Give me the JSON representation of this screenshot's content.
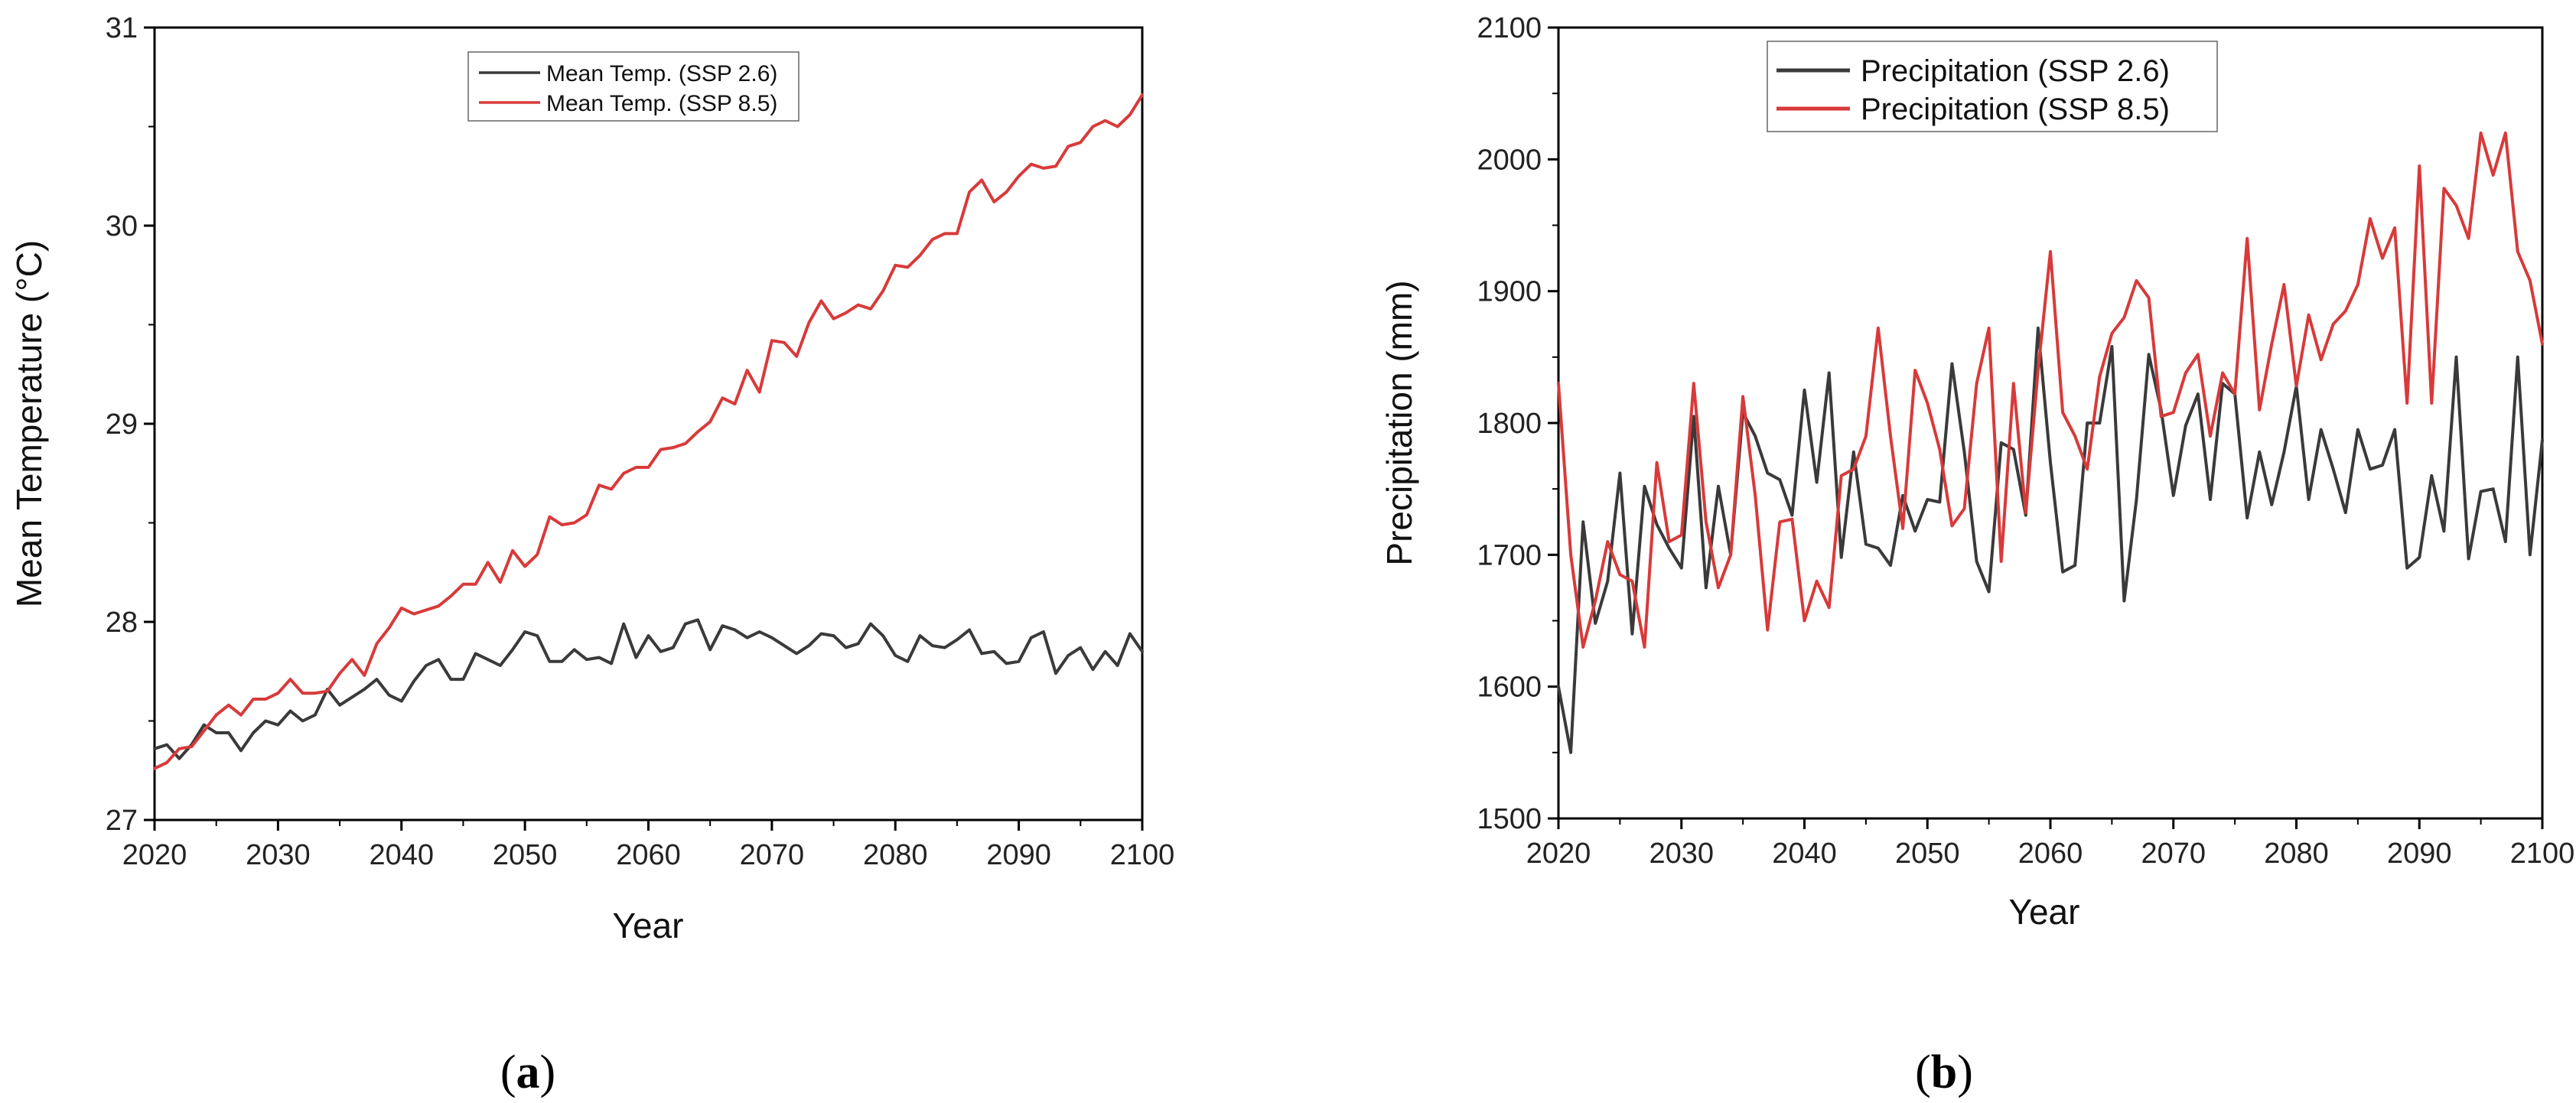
{
  "chart_data": [
    {
      "type": "line",
      "panel_label": {
        "open": "(",
        "letter": "a",
        "close": ")"
      },
      "title": "",
      "xlabel": "Year",
      "ylabel": "Mean Temperature (°C)",
      "xlim": [
        2020,
        2100
      ],
      "ylim": [
        27,
        31
      ],
      "xticks": [
        2020,
        2030,
        2040,
        2050,
        2060,
        2070,
        2080,
        2090,
        2100
      ],
      "yticks": [
        27,
        28,
        29,
        30,
        31
      ],
      "legend": {
        "position": "top-center",
        "boxed": true
      },
      "x": [
        2020,
        2021,
        2022,
        2023,
        2024,
        2025,
        2026,
        2027,
        2028,
        2029,
        2030,
        2031,
        2032,
        2033,
        2034,
        2035,
        2036,
        2037,
        2038,
        2039,
        2040,
        2041,
        2042,
        2043,
        2044,
        2045,
        2046,
        2047,
        2048,
        2049,
        2050,
        2051,
        2052,
        2053,
        2054,
        2055,
        2056,
        2057,
        2058,
        2059,
        2060,
        2061,
        2062,
        2063,
        2064,
        2065,
        2066,
        2067,
        2068,
        2069,
        2070,
        2071,
        2072,
        2073,
        2074,
        2075,
        2076,
        2077,
        2078,
        2079,
        2080,
        2081,
        2082,
        2083,
        2084,
        2085,
        2086,
        2087,
        2088,
        2089,
        2090,
        2091,
        2092,
        2093,
        2094,
        2095,
        2096,
        2097,
        2098,
        2099,
        2100
      ],
      "series": [
        {
          "name": "Mean Temp. (SSP 2.6)",
          "color": "#3a3a3a",
          "values": [
            27.36,
            27.38,
            27.31,
            27.38,
            27.48,
            27.44,
            27.44,
            27.35,
            27.44,
            27.5,
            27.48,
            27.55,
            27.5,
            27.53,
            27.66,
            27.58,
            27.62,
            27.66,
            27.71,
            27.63,
            27.6,
            27.7,
            27.78,
            27.81,
            27.71,
            27.71,
            27.84,
            27.81,
            27.78,
            27.86,
            27.95,
            27.93,
            27.8,
            27.8,
            27.86,
            27.81,
            27.82,
            27.79,
            27.99,
            27.82,
            27.93,
            27.85,
            27.87,
            27.99,
            28.01,
            27.86,
            27.98,
            27.96,
            27.92,
            27.95,
            27.92,
            27.88,
            27.84,
            27.88,
            27.94,
            27.93,
            27.87,
            27.89,
            27.99,
            27.93,
            27.83,
            27.8,
            27.93,
            27.88,
            27.87,
            27.91,
            27.96,
            27.84,
            27.85,
            27.79,
            27.8,
            27.92,
            27.95,
            27.74,
            27.83,
            27.87,
            27.76,
            27.85,
            27.78,
            27.94,
            27.85
          ]
        },
        {
          "name": "Mean Temp. (SSP 8.5)",
          "color": "#d83a3a",
          "values": [
            27.26,
            27.29,
            27.36,
            27.37,
            27.45,
            27.53,
            27.58,
            27.53,
            27.61,
            27.61,
            27.64,
            27.71,
            27.64,
            27.64,
            27.65,
            27.74,
            27.81,
            27.73,
            27.89,
            27.97,
            28.07,
            28.04,
            28.06,
            28.08,
            28.13,
            28.19,
            28.19,
            28.3,
            28.2,
            28.36,
            28.28,
            28.34,
            28.53,
            28.49,
            28.5,
            28.54,
            28.69,
            28.67,
            28.75,
            28.78,
            28.78,
            28.87,
            28.88,
            28.9,
            28.96,
            29.01,
            29.13,
            29.1,
            29.27,
            29.16,
            29.42,
            29.41,
            29.34,
            29.51,
            29.62,
            29.53,
            29.56,
            29.6,
            29.58,
            29.67,
            29.8,
            29.79,
            29.85,
            29.93,
            29.96,
            29.96,
            30.17,
            30.23,
            30.12,
            30.17,
            30.25,
            30.31,
            30.29,
            30.3,
            30.4,
            30.42,
            30.5,
            30.53,
            30.5,
            30.56,
            30.66
          ]
        }
      ]
    },
    {
      "type": "line",
      "panel_label": {
        "open": "(",
        "letter": "b",
        "close": ")"
      },
      "title": "",
      "xlabel": "Year",
      "ylabel": "Precipitation (mm)",
      "xlim": [
        2020,
        2100
      ],
      "ylim": [
        1500,
        2100
      ],
      "xticks": [
        2020,
        2030,
        2040,
        2050,
        2060,
        2070,
        2080,
        2090,
        2100
      ],
      "yticks": [
        1500,
        1600,
        1700,
        1800,
        1900,
        2000,
        2100
      ],
      "legend": {
        "position": "top-center",
        "boxed": true
      },
      "x": [
        2020,
        2021,
        2022,
        2023,
        2024,
        2025,
        2026,
        2027,
        2028,
        2029,
        2030,
        2031,
        2032,
        2033,
        2034,
        2035,
        2036,
        2037,
        2038,
        2039,
        2040,
        2041,
        2042,
        2043,
        2044,
        2045,
        2046,
        2047,
        2048,
        2049,
        2050,
        2051,
        2052,
        2053,
        2054,
        2055,
        2056,
        2057,
        2058,
        2059,
        2060,
        2061,
        2062,
        2063,
        2064,
        2065,
        2066,
        2067,
        2068,
        2069,
        2070,
        2071,
        2072,
        2073,
        2074,
        2075,
        2076,
        2077,
        2078,
        2079,
        2080,
        2081,
        2082,
        2083,
        2084,
        2085,
        2086,
        2087,
        2088,
        2089,
        2090,
        2091,
        2092,
        2093,
        2094,
        2095,
        2096,
        2097,
        2098,
        2099,
        2100
      ],
      "series": [
        {
          "name": "Precipitation (SSP 2.6)",
          "color": "#3a3a3a",
          "values": [
            1600,
            1550,
            1725,
            1648,
            1680,
            1762,
            1640,
            1752,
            1723,
            1705,
            1690,
            1805,
            1675,
            1752,
            1700,
            1808,
            1790,
            1762,
            1757,
            1730,
            1825,
            1755,
            1838,
            1698,
            1778,
            1708,
            1705,
            1692,
            1745,
            1718,
            1742,
            1740,
            1845,
            1778,
            1695,
            1672,
            1785,
            1780,
            1730,
            1872,
            1770,
            1687,
            1692,
            1800,
            1800,
            1858,
            1665,
            1742,
            1852,
            1810,
            1745,
            1798,
            1822,
            1742,
            1830,
            1822,
            1728,
            1778,
            1738,
            1778,
            1828,
            1742,
            1795,
            1765,
            1732,
            1795,
            1765,
            1768,
            1795,
            1690,
            1698,
            1760,
            1718,
            1850,
            1697,
            1748,
            1750,
            1710,
            1850,
            1700,
            1787
          ]
        },
        {
          "name": "Precipitation (SSP 8.5)",
          "color": "#d83a3a",
          "values": [
            1830,
            1700,
            1630,
            1665,
            1710,
            1685,
            1680,
            1630,
            1770,
            1710,
            1715,
            1830,
            1725,
            1675,
            1700,
            1820,
            1745,
            1643,
            1725,
            1727,
            1650,
            1680,
            1660,
            1760,
            1765,
            1790,
            1872,
            1790,
            1720,
            1840,
            1815,
            1780,
            1722,
            1735,
            1830,
            1872,
            1695,
            1830,
            1732,
            1840,
            1930,
            1808,
            1790,
            1765,
            1835,
            1868,
            1880,
            1908,
            1895,
            1805,
            1808,
            1838,
            1852,
            1790,
            1838,
            1822,
            1940,
            1810,
            1860,
            1905,
            1828,
            1882,
            1848,
            1875,
            1885,
            1905,
            1955,
            1925,
            1948,
            1815,
            1995,
            1815,
            1978,
            1965,
            1940,
            2020,
            1988,
            2020,
            1930,
            1908,
            1860
          ]
        }
      ]
    }
  ]
}
